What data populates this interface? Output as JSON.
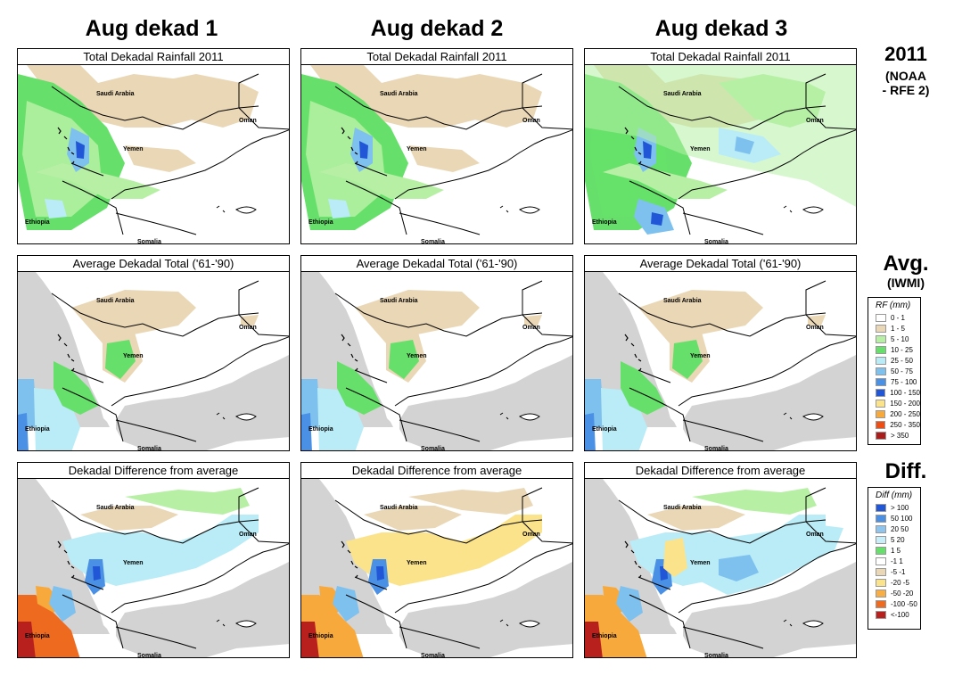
{
  "columns": [
    "Aug dekad 1",
    "Aug dekad 2",
    "Aug dekad 3"
  ],
  "rows": [
    {
      "panel_title": "Total Dekadal Rainfall 2011"
    },
    {
      "panel_title": "Average Dekadal Total ('61-'90)"
    },
    {
      "panel_title": "Dekadal Difference from average"
    }
  ],
  "row_labels": {
    "r1_main": "2011",
    "r1_sub1": "(NOAA",
    "r1_sub2": "- RFE 2)",
    "r2_main": "Avg.",
    "r2_sub": "(IWMI)",
    "r3_main": "Diff."
  },
  "place_labels": {
    "saudi": "Saudi Arabia",
    "oman": "Oman",
    "yemen": "Yemen",
    "ethiopia": "Ethiopia",
    "somalia": "Somalia"
  },
  "rf_legend": {
    "title": "RF (mm)",
    "items": [
      {
        "label": "0 - 1",
        "color": "#ffffff"
      },
      {
        "label": "1 - 5",
        "color": "#ead7b6"
      },
      {
        "label": "5 - 10",
        "color": "#b7f0a5"
      },
      {
        "label": "10 - 25",
        "color": "#66e06a"
      },
      {
        "label": "25 - 50",
        "color": "#b9ecf7"
      },
      {
        "label": "50 - 75",
        "color": "#7ec1ef"
      },
      {
        "label": "75 - 100",
        "color": "#4a90e4"
      },
      {
        "label": "100 - 150",
        "color": "#2157d6"
      },
      {
        "label": "150 - 200",
        "color": "#fbe38b"
      },
      {
        "label": "200 - 250",
        "color": "#f8a93c"
      },
      {
        "label": "250 - 350",
        "color": "#ee4d13"
      },
      {
        "label": "> 350",
        "color": "#a91d1d"
      }
    ]
  },
  "diff_legend": {
    "title": "Diff (mm)",
    "items": [
      {
        "label": "> 100",
        "color": "#2157d6"
      },
      {
        "label": "50  100",
        "color": "#4a8fe3"
      },
      {
        "label": "20  50",
        "color": "#8fc4ef"
      },
      {
        "label": "5  20",
        "color": "#c8eefa"
      },
      {
        "label": "1  5",
        "color": "#66e06a"
      },
      {
        "label": "-1  1",
        "color": "#ffffff"
      },
      {
        "label": "-5  -1",
        "color": "#ead7b6"
      },
      {
        "label": "-20  -5",
        "color": "#fbe38b"
      },
      {
        "label": "-50  -20",
        "color": "#f8ae45"
      },
      {
        "label": "-100  -50",
        "color": "#ee6a1f"
      },
      {
        "label": "<-100",
        "color": "#b8201e"
      }
    ]
  }
}
